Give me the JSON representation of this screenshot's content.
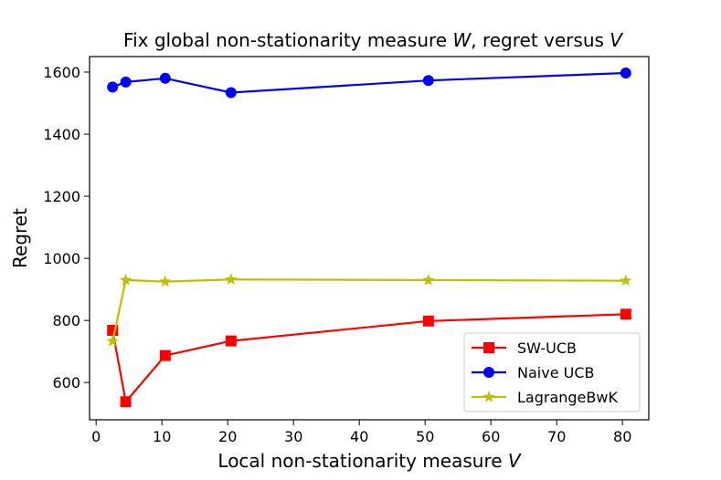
{
  "chart_data": {
    "type": "line",
    "title": "Fix global non-stationarity measure ",
    "title_symbol_w": "W",
    "title_mid": ", regret versus ",
    "title_symbol_v": "V",
    "xlabel": "Local non-stationarity measure ",
    "xlabel_symbol": "V",
    "ylabel": "Regret",
    "xlim": [
      -1,
      84
    ],
    "ylim": [
      480,
      1650
    ],
    "xticks": [
      0,
      10,
      20,
      30,
      40,
      50,
      60,
      70,
      80
    ],
    "yticks": [
      600,
      800,
      1000,
      1200,
      1400,
      1600
    ],
    "grid": false,
    "legend_position": "lower-right",
    "series": [
      {
        "name": "SW-UCB",
        "color": "#ff0000",
        "marker": "square",
        "x": [
          2.5,
          4.5,
          10.5,
          20.5,
          50.5,
          80.5
        ],
        "y": [
          768,
          538,
          687,
          734,
          798,
          820
        ]
      },
      {
        "name": "Naive UCB",
        "color": "#0000ff",
        "marker": "circle",
        "x": [
          2.5,
          4.5,
          10.5,
          20.5,
          50.5,
          80.5
        ],
        "y": [
          1552,
          1568,
          1580,
          1534,
          1573,
          1597
        ]
      },
      {
        "name": "LagrangeBwK",
        "color": "#bfbf00",
        "marker": "star",
        "x": [
          2.5,
          4.5,
          10.5,
          20.5,
          50.5,
          80.5
        ],
        "y": [
          733,
          930,
          925,
          932,
          930,
          928
        ]
      }
    ]
  }
}
